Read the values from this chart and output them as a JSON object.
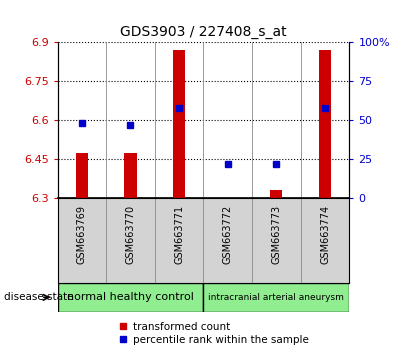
{
  "title": "GDS3903 / 227408_s_at",
  "samples": [
    "GSM663769",
    "GSM663770",
    "GSM663771",
    "GSM663772",
    "GSM663773",
    "GSM663774"
  ],
  "transformed_counts": [
    6.473,
    6.473,
    6.872,
    6.302,
    6.332,
    6.872
  ],
  "percentile_ranks": [
    48,
    47,
    58,
    22,
    22,
    58
  ],
  "ylim_left": [
    6.3,
    6.9
  ],
  "ylim_right": [
    0,
    100
  ],
  "yticks_left": [
    6.3,
    6.45,
    6.6,
    6.75,
    6.9
  ],
  "yticks_right": [
    0,
    25,
    50,
    75,
    100
  ],
  "ytick_labels_left": [
    "6.3",
    "6.45",
    "6.6",
    "6.75",
    "6.9"
  ],
  "ytick_labels_right": [
    "0",
    "25",
    "50",
    "75",
    "100%"
  ],
  "bar_color": "#cc0000",
  "square_color": "#0000cc",
  "bar_bottom": 6.3,
  "group1_label": "normal healthy control",
  "group2_label": "intracranial arterial aneurysm",
  "group_color": "#90ee90",
  "sample_bg_color": "#d3d3d3",
  "disease_state_label": "disease state",
  "legend_bar_label": "transformed count",
  "legend_square_label": "percentile rank within the sample",
  "plot_bg_color": "white",
  "grid_color": "black"
}
